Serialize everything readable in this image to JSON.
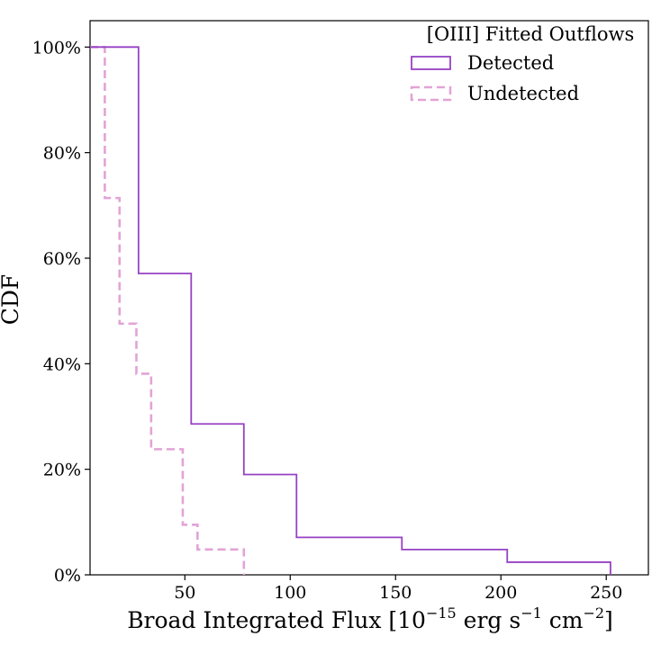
{
  "chart_data": {
    "type": "step-cdf",
    "title": "",
    "xlabel": {
      "text": "Broad Integrated Flux [10",
      "exp1": "−15",
      "mid1": "  erg s",
      "exp2": "−1",
      "mid2": " cm",
      "exp3": "−2",
      "end": "]"
    },
    "ylabel": "CDF",
    "xlim": [
      5,
      270
    ],
    "ylim": [
      0,
      1.05
    ],
    "x_ticks": [
      50,
      100,
      150,
      200,
      250
    ],
    "x_tick_labels": [
      "50",
      "100",
      "150",
      "200",
      "250"
    ],
    "y_ticks": [
      0,
      0.2,
      0.4,
      0.6,
      0.8,
      1.0
    ],
    "y_tick_labels": [
      "0%",
      "20%",
      "40%",
      "60%",
      "80%",
      "100%"
    ],
    "legend": {
      "title": "[OIII] Fitted Outflows",
      "placement": "top-right"
    },
    "series": [
      {
        "name": "Detected",
        "color": "#9642c4",
        "linestyle": "solid",
        "points": [
          [
            5,
            1.0
          ],
          [
            28,
            1.0
          ],
          [
            28,
            0.571
          ],
          [
            53,
            0.571
          ],
          [
            53,
            0.286
          ],
          [
            78,
            0.286
          ],
          [
            78,
            0.19
          ],
          [
            103,
            0.19
          ],
          [
            103,
            0.071
          ],
          [
            153,
            0.071
          ],
          [
            153,
            0.048
          ],
          [
            203,
            0.048
          ],
          [
            203,
            0.024
          ],
          [
            252,
            0.024
          ],
          [
            252,
            0
          ]
        ]
      },
      {
        "name": "Undetected",
        "color": "#e3a3d6",
        "linestyle": "dashed",
        "points": [
          [
            5,
            1.0
          ],
          [
            12,
            1.0
          ],
          [
            12,
            0.714
          ],
          [
            19,
            0.714
          ],
          [
            19,
            0.476
          ],
          [
            27,
            0.476
          ],
          [
            27,
            0.381
          ],
          [
            34,
            0.381
          ],
          [
            34,
            0.238
          ],
          [
            49,
            0.238
          ],
          [
            49,
            0.095
          ],
          [
            56,
            0.095
          ],
          [
            56,
            0.048
          ],
          [
            78,
            0.048
          ],
          [
            78,
            0
          ]
        ]
      }
    ]
  }
}
